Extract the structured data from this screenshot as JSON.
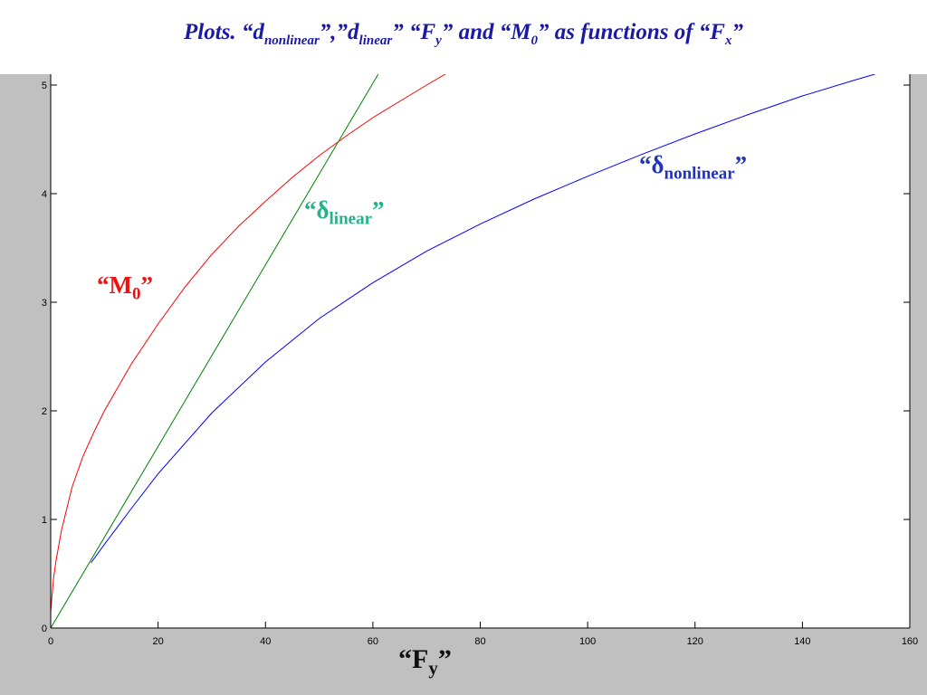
{
  "slide": {
    "title": {
      "p1": "Plots. “d",
      "s1": "nonlinear",
      "p2": "”,”d",
      "s2": "linear",
      "p3": "” “F",
      "s3": "y",
      "p4": "” and “M",
      "s4": "0",
      "p5": "” as functions of “F",
      "s5": "x",
      "p6": "”"
    }
  },
  "annotations": {
    "m0": {
      "open": "“M",
      "sub": "0",
      "close": "”",
      "color": "#ee1111"
    },
    "linear": {
      "open": "“δ",
      "sub": "linear",
      "close": "”",
      "color": "#22b38a"
    },
    "nonlinear": {
      "open": "“δ",
      "sub": "nonlinear",
      "close": "”",
      "color": "#2233bb"
    }
  },
  "xlabel_text": {
    "open": "“F",
    "sub": "y",
    "close": "”"
  },
  "chart_data": {
    "type": "line",
    "title": "",
    "xlabel": "“Fy”",
    "ylabel": "",
    "xlim": [
      0,
      160
    ],
    "ylim": [
      0,
      5.1
    ],
    "x_ticks": [
      0,
      20,
      40,
      60,
      80,
      100,
      120,
      140,
      160
    ],
    "y_ticks": [
      0,
      1,
      2,
      3,
      4,
      5
    ],
    "grid": false,
    "series": [
      {
        "name": "“M0”",
        "color": "#ff0000",
        "x": [
          0,
          0.5,
          1,
          2,
          4,
          6,
          8,
          10,
          15,
          20,
          25,
          30,
          35,
          40,
          45,
          50,
          55,
          60,
          65,
          70,
          73.5
        ],
        "y": [
          0.15,
          0.45,
          0.62,
          0.9,
          1.3,
          1.58,
          1.8,
          2.0,
          2.43,
          2.8,
          3.14,
          3.44,
          3.7,
          3.93,
          4.15,
          4.35,
          4.53,
          4.7,
          4.85,
          5.0,
          5.1
        ]
      },
      {
        "name": "“δlinear”",
        "color": "#008000",
        "x": [
          0,
          61
        ],
        "y": [
          0,
          5.1
        ]
      },
      {
        "name": "“δnonlinear”",
        "color": "#0000ff",
        "x": [
          7.5,
          10,
          15,
          20,
          30,
          40,
          50,
          60,
          70,
          80,
          90,
          100,
          110,
          120,
          130,
          140,
          150,
          153.5
        ],
        "y": [
          0.6,
          0.77,
          1.1,
          1.42,
          1.98,
          2.45,
          2.85,
          3.18,
          3.47,
          3.72,
          3.95,
          4.16,
          4.36,
          4.55,
          4.73,
          4.9,
          5.05,
          5.1
        ]
      }
    ]
  }
}
